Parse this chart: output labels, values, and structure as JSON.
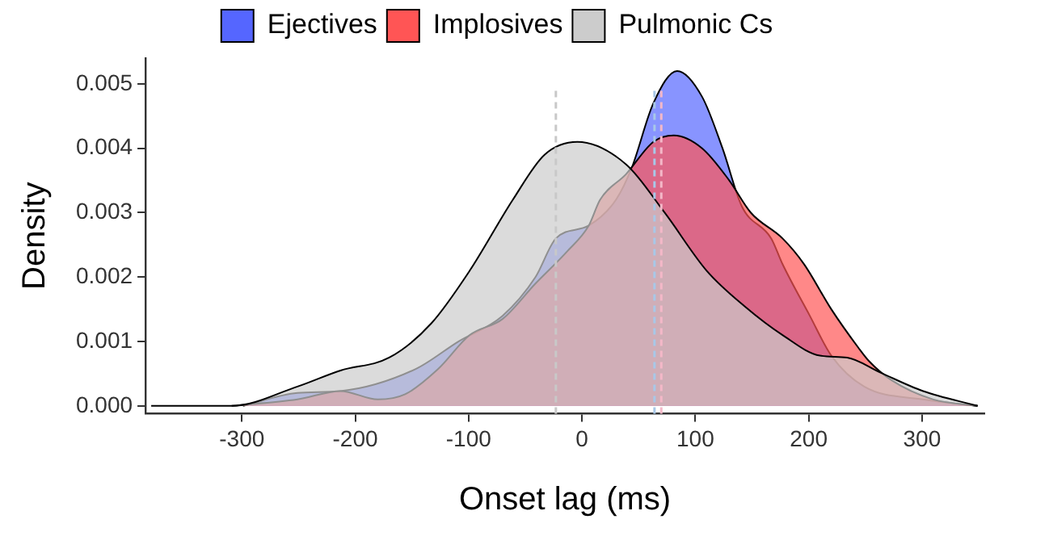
{
  "chart_data": {
    "type": "area",
    "xlabel": "Onset lag (ms)",
    "ylabel": "Density",
    "xlim": [
      -385,
      355
    ],
    "xticks": [
      -300,
      -200,
      -100,
      0,
      100,
      200,
      300
    ],
    "ylim": [
      -0.00012,
      0.0054
    ],
    "yticks": [
      {
        "value": 0,
        "label": "0.000"
      },
      {
        "value": 0.001,
        "label": "0.001"
      },
      {
        "value": 0.002,
        "label": "0.002"
      },
      {
        "value": 0.003,
        "label": "0.003"
      },
      {
        "value": 0.004,
        "label": "0.004"
      },
      {
        "value": 0.005,
        "label": "0.005"
      }
    ],
    "grid": false,
    "legend": "top",
    "marker": "none",
    "series": [
      {
        "name": "Ejectives",
        "color": "#5566ff",
        "x": [
          -299,
          -251,
          -213,
          -147,
          -109,
          -70,
          -41,
          -23,
          6,
          30,
          44,
          63,
          84,
          106,
          124,
          141,
          167,
          177,
          201,
          220,
          249,
          301,
          349
        ],
        "values": [
          0,
          0.0002,
          0.00023,
          0.00057,
          0.001,
          0.0014,
          0.002,
          0.0026,
          0.0028,
          0.0032,
          0.0037,
          0.0047,
          0.0052,
          0.0048,
          0.004,
          0.0031,
          0.0026,
          0.0022,
          0.0014,
          0.00078,
          0.0003,
          0.0001,
          0
        ]
      },
      {
        "name": "Implosives",
        "color": "#ff5555",
        "x": [
          -309,
          -251,
          -213,
          -180,
          -156,
          -127,
          -99,
          -70,
          -41,
          -13,
          6,
          16,
          39,
          63,
          81,
          106,
          130,
          149,
          177,
          196,
          220,
          244,
          253,
          273,
          310,
          349
        ],
        "values": [
          0,
          0.0001,
          0.00023,
          0.0001,
          0.00018,
          0.00057,
          0.0011,
          0.00135,
          0.0019,
          0.0024,
          0.0028,
          0.0032,
          0.0036,
          0.0041,
          0.0042,
          0.004,
          0.0035,
          0.003,
          0.0026,
          0.0022,
          0.0015,
          0.0009,
          0.0007,
          0.0004,
          0.0001,
          0
        ]
      },
      {
        "name": "Pulmonic Cs",
        "color": "#cccccc",
        "x": [
          -380,
          -309,
          -251,
          -213,
          -170,
          -133,
          -99,
          -61,
          -33,
          -4,
          39,
          73,
          110,
          144,
          177,
          210,
          234,
          263,
          301,
          349
        ],
        "values": [
          0,
          0,
          0.0003,
          0.00055,
          0.00075,
          0.00128,
          0.0021,
          0.0032,
          0.0039,
          0.0041,
          0.00375,
          0.003,
          0.0021,
          0.00154,
          0.0011,
          0.00078,
          0.00075,
          0.00052,
          0.00023,
          0
        ]
      }
    ],
    "ref_lines": [
      {
        "axis": "x",
        "value": 64,
        "color": "#a8c8e8",
        "line_style": "dashed"
      },
      {
        "axis": "x",
        "value": 70,
        "color": "#f4b8c8",
        "line_style": "dashed"
      },
      {
        "axis": "x",
        "value": -23,
        "color": "#c8c8c8",
        "line_style": "dashed"
      }
    ]
  }
}
